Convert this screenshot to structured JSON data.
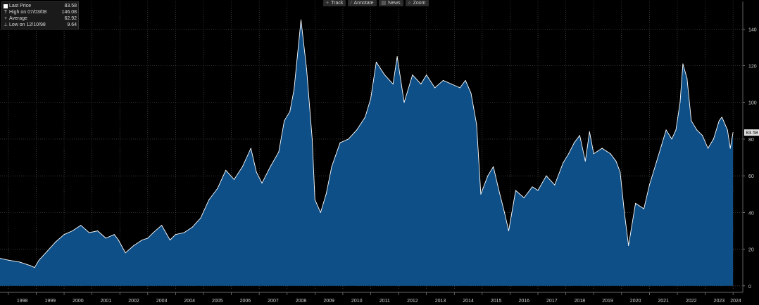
{
  "toolbar": {
    "buttons": [
      {
        "icon": "track-icon",
        "glyph": "+",
        "label": "Track"
      },
      {
        "icon": "annotate-icon",
        "glyph": "∕",
        "label": "Annotate"
      },
      {
        "icon": "news-icon",
        "glyph": "▤",
        "label": "News"
      },
      {
        "icon": "zoom-icon",
        "glyph": "⌕",
        "label": "Zoom"
      }
    ]
  },
  "legend": {
    "rows": [
      {
        "name": "Last Price",
        "value": "83.58",
        "symbol": "swatch"
      },
      {
        "name": "High on 07/03/08",
        "value": "146.08",
        "symbol": "T"
      },
      {
        "name": "Average",
        "value": "62.92",
        "symbol": "+"
      },
      {
        "name": "Low on 12/10/98",
        "value": "9.64",
        "symbol": "⊥"
      }
    ]
  },
  "colors": {
    "background": "#000000",
    "area_fill": "#0e4f87",
    "line": "#ffffff",
    "grid": "#5a5a5a",
    "tag_bg": "#e6e6e6"
  },
  "chart_data": {
    "type": "area",
    "title": "",
    "xlabel": "",
    "ylabel": "",
    "ylim": [
      0,
      150
    ],
    "yticks": [
      0,
      20,
      40,
      60,
      80,
      100,
      120,
      140
    ],
    "grid": true,
    "x_tick_labels": [
      "1998",
      "1999",
      "2000",
      "2001",
      "2002",
      "2003",
      "2004",
      "2005",
      "2006",
      "2007",
      "2008",
      "2009",
      "2010",
      "2011",
      "2012",
      "2013",
      "2014",
      "2015",
      "2016",
      "2017",
      "2018",
      "2019",
      "2020",
      "2021",
      "2022",
      "2023",
      "2024"
    ],
    "last_price_label": "83.58",
    "series": [
      {
        "name": "Last Price",
        "x": [
          1997.7,
          1998.0,
          1998.4,
          1998.8,
          1998.94,
          1999.1,
          1999.4,
          1999.7,
          2000.0,
          2000.3,
          2000.6,
          2000.9,
          2001.2,
          2001.5,
          2001.8,
          2001.95,
          2002.2,
          2002.5,
          2002.8,
          2003.0,
          2003.2,
          2003.5,
          2003.8,
          2004.0,
          2004.3,
          2004.6,
          2004.9,
          2005.2,
          2005.5,
          2005.8,
          2006.1,
          2006.4,
          2006.7,
          2006.9,
          2007.1,
          2007.4,
          2007.7,
          2007.9,
          2008.1,
          2008.25,
          2008.5,
          2008.7,
          2008.9,
          2009.0,
          2009.2,
          2009.4,
          2009.6,
          2009.9,
          2010.2,
          2010.5,
          2010.8,
          2011.0,
          2011.2,
          2011.5,
          2011.8,
          2011.95,
          2012.2,
          2012.5,
          2012.8,
          2013.0,
          2013.3,
          2013.6,
          2013.9,
          2014.2,
          2014.4,
          2014.6,
          2014.8,
          2014.95,
          2015.2,
          2015.4,
          2015.6,
          2015.8,
          2015.95,
          2016.2,
          2016.5,
          2016.8,
          2017.0,
          2017.3,
          2017.6,
          2017.9,
          2018.1,
          2018.3,
          2018.5,
          2018.7,
          2018.85,
          2019.0,
          2019.3,
          2019.6,
          2019.8,
          2019.95,
          2020.1,
          2020.25,
          2020.5,
          2020.8,
          2021.0,
          2021.3,
          2021.6,
          2021.8,
          2021.95,
          2022.1,
          2022.2,
          2022.35,
          2022.5,
          2022.7,
          2022.9,
          2023.1,
          2023.3,
          2023.5,
          2023.6,
          2023.8,
          2023.9,
          2024.0
        ],
        "values": [
          15,
          14,
          13,
          11,
          10,
          14,
          19,
          24,
          28,
          30,
          33,
          29,
          30,
          26,
          28,
          25,
          18,
          22,
          25,
          26,
          29,
          33,
          25,
          28,
          29,
          32,
          37,
          47,
          53,
          63,
          58,
          65,
          75,
          62,
          56,
          65,
          73,
          90,
          95,
          107,
          145,
          118,
          80,
          47,
          40,
          50,
          65,
          78,
          80,
          85,
          92,
          102,
          122,
          115,
          110,
          125,
          100,
          115,
          110,
          115,
          108,
          112,
          110,
          108,
          112,
          105,
          88,
          50,
          60,
          65,
          52,
          40,
          30,
          52,
          48,
          54,
          52,
          60,
          55,
          67,
          72,
          78,
          82,
          68,
          84,
          72,
          75,
          72,
          68,
          62,
          40,
          22,
          45,
          42,
          55,
          70,
          85,
          80,
          85,
          100,
          121,
          113,
          90,
          85,
          82,
          75,
          80,
          90,
          92,
          85,
          75,
          83.58
        ]
      }
    ]
  }
}
